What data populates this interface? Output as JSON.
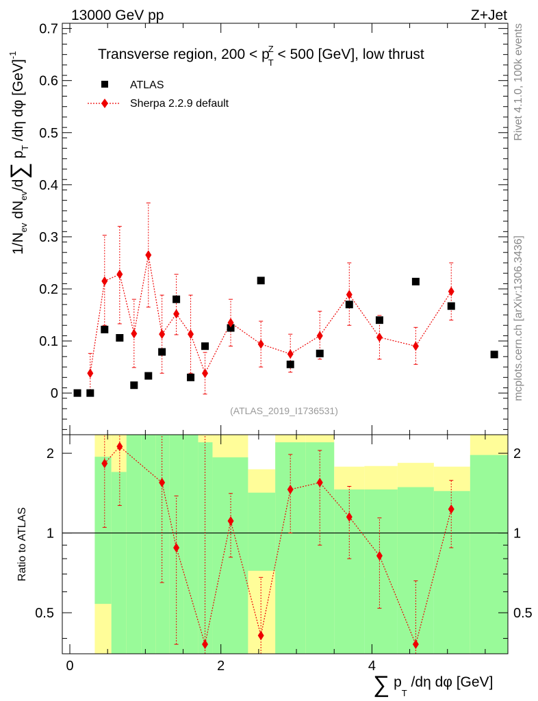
{
  "header": {
    "left": "13000 GeV pp",
    "right": "Z+Jet"
  },
  "chart_data": {
    "type": "scatter",
    "title": "Transverse region, 200 < pTZ < 500 [GeV], low thrust",
    "title_parts": {
      "before": "Transverse region, 200 < p",
      "sup": "Z",
      "sub": "T",
      "after": " < 500 [GeV], low thrust"
    },
    "ylabel": "1/Nev dNev/d∑pT/dη dφ [GeV]⁻¹",
    "ylabel_parts": {
      "a": "1/N",
      "ev1": "ev",
      "b": " dN",
      "ev2": "ev",
      "c": "/d",
      "sum": "∑",
      "d": " p",
      "t": "T",
      "e": " /dη dφ  [GeV]",
      "exp": "-1"
    },
    "xlabel": "∑pT/dη dφ [GeV]",
    "xlabel_parts": {
      "sum": "∑",
      "a": " p",
      "t": "T",
      "b": " /dη dφ [GeV]"
    },
    "xlim": [
      -0.1,
      5.8
    ],
    "ylim": [
      -0.08,
      0.71
    ],
    "yticks": [
      0,
      0.1,
      0.2,
      0.3,
      0.4,
      0.5,
      0.6,
      0.7
    ],
    "ytick_labels": [
      "0",
      "0.1",
      "0.2",
      "0.3",
      "0.4",
      "0.5",
      "0.6",
      "0.7"
    ],
    "xticks": [
      0,
      2,
      4
    ],
    "xtick_labels": [
      "0",
      "2",
      "4"
    ],
    "legend": {
      "position": "top-left",
      "entries": [
        "ATLAS",
        "Sherpa 2.2.9 default"
      ]
    },
    "series": [
      {
        "name": "ATLAS",
        "marker": "square",
        "color": "#000000",
        "x": [
          0.1,
          0.27,
          0.46,
          0.66,
          0.85,
          1.04,
          1.22,
          1.41,
          1.6,
          1.79,
          2.13,
          2.53,
          2.92,
          3.31,
          3.7,
          4.1,
          4.58,
          5.05,
          5.62
        ],
        "y": [
          0.0,
          0.0,
          0.122,
          0.106,
          0.015,
          0.033,
          0.079,
          0.18,
          0.03,
          0.09,
          0.125,
          0.216,
          0.055,
          0.076,
          0.17,
          0.14,
          0.214,
          0.167,
          0.074
        ]
      },
      {
        "name": "Sherpa 2.2.9 default",
        "marker": "diamond",
        "color": "#ee0000",
        "x": [
          0.27,
          0.46,
          0.66,
          0.85,
          1.04,
          1.22,
          1.41,
          1.6,
          1.79,
          2.13,
          2.53,
          2.92,
          3.31,
          3.7,
          4.1,
          4.58,
          5.05
        ],
        "y": [
          0.038,
          0.215,
          0.228,
          0.114,
          0.265,
          0.113,
          0.152,
          0.113,
          0.038,
          0.135,
          0.094,
          0.075,
          0.11,
          0.189,
          0.107,
          0.09,
          0.195
        ],
        "err_low": [
          0.038,
          0.085,
          0.095,
          0.065,
          0.1,
          0.075,
          0.04,
          0.075,
          0.04,
          0.045,
          0.044,
          0.035,
          0.045,
          0.059,
          0.042,
          0.035,
          0.055
        ],
        "err_high": [
          0.038,
          0.088,
          0.092,
          0.066,
          0.1,
          0.075,
          0.076,
          0.075,
          0.04,
          0.045,
          0.044,
          0.038,
          0.047,
          0.061,
          0.042,
          0.036,
          0.055
        ]
      }
    ],
    "watermark": "(ATLAS_2019_I1736531)",
    "side_labels": {
      "top": "Rivet 4.1.0,  100k events",
      "bottom": "mcplots.cern.ch [arXiv:1306.3436]"
    },
    "ratio": {
      "ylabel": "Ratio to ATLAS",
      "ylim": [
        0.35,
        2.35
      ],
      "ytick_labels": [
        "0.5",
        "1",
        "2"
      ],
      "ytick_values": [
        0.5,
        1,
        2
      ],
      "reference": 1,
      "bins": [
        {
          "lo": 0.33,
          "hi": 0.55,
          "y1": [
            0.35,
            2.35
          ],
          "y2": [
            0.54,
            1.94
          ]
        },
        {
          "lo": 0.55,
          "hi": 0.75,
          "y1": [
            0.35,
            2.35
          ],
          "y2": [
            0.35,
            1.7
          ]
        },
        {
          "lo": 0.75,
          "hi": 0.95,
          "y1": [
            0.35,
            2.35
          ],
          "y2": [
            0.35,
            2.35
          ]
        },
        {
          "lo": 0.95,
          "hi": 1.14,
          "y1": [
            0.35,
            2.35
          ],
          "y2": [
            0.35,
            2.35
          ]
        },
        {
          "lo": 1.14,
          "hi": 1.32,
          "y1": [
            0.35,
            2.35
          ],
          "y2": [
            0.35,
            2.35
          ]
        },
        {
          "lo": 1.32,
          "hi": 1.51,
          "y1": [
            0.35,
            2.35
          ],
          "y2": [
            0.35,
            2.35
          ]
        },
        {
          "lo": 1.51,
          "hi": 1.7,
          "y1": [
            0.35,
            2.35
          ],
          "y2": [
            0.35,
            2.35
          ]
        },
        {
          "lo": 1.7,
          "hi": 1.89,
          "y1": [
            0.35,
            2.35
          ],
          "y2": [
            0.35,
            2.2
          ]
        },
        {
          "lo": 1.89,
          "hi": 2.36,
          "y1": [
            0.35,
            2.35
          ],
          "y2": [
            0.35,
            1.93
          ]
        },
        {
          "lo": 2.36,
          "hi": 2.72,
          "y1": [
            0.35,
            1.74
          ],
          "y2": [
            0.72,
            1.42
          ]
        },
        {
          "lo": 2.72,
          "hi": 3.12,
          "y1": [
            0.35,
            2.35
          ],
          "y2": [
            0.35,
            2.2
          ]
        },
        {
          "lo": 3.12,
          "hi": 3.5,
          "y1": [
            0.35,
            2.35
          ],
          "y2": [
            0.35,
            2.2
          ]
        },
        {
          "lo": 3.5,
          "hi": 3.9,
          "y1": [
            0.69,
            1.78
          ],
          "y2": [
            0.35,
            1.46
          ]
        },
        {
          "lo": 3.9,
          "hi": 4.34,
          "y1": [
            0.68,
            1.79
          ],
          "y2": [
            0.35,
            1.46
          ]
        },
        {
          "lo": 4.34,
          "hi": 4.82,
          "y1": [
            0.64,
            1.84
          ],
          "y2": [
            0.35,
            1.49
          ]
        },
        {
          "lo": 4.82,
          "hi": 5.3,
          "y1": [
            0.69,
            1.78
          ],
          "y2": [
            0.35,
            1.44
          ]
        },
        {
          "lo": 5.3,
          "hi": 5.8,
          "y1": [
            0.35,
            2.35
          ],
          "y2": [
            0.35,
            1.97
          ]
        }
      ],
      "band_colors": {
        "inner": "#99fa99",
        "outer": "#fffd99"
      },
      "points": {
        "x": [
          0.46,
          0.66,
          1.22,
          1.41,
          1.79,
          2.13,
          2.53,
          2.92,
          3.31,
          3.7,
          4.1,
          4.58,
          5.05
        ],
        "y": [
          1.83,
          2.12,
          1.55,
          0.88,
          0.38,
          1.11,
          0.41,
          1.46,
          1.55,
          1.15,
          0.82,
          0.38,
          1.23
        ],
        "err_low": [
          0.78,
          0.85,
          0.9,
          0.5,
          0.3,
          0.3,
          0.2,
          0.46,
          0.65,
          0.35,
          0.3,
          0.3,
          0.35
        ],
        "err_high": [
          0.55,
          0.5,
          0.85,
          0.5,
          2.2,
          0.3,
          0.27,
          0.52,
          0.5,
          0.35,
          0.32,
          0.28,
          0.35
        ]
      }
    }
  }
}
